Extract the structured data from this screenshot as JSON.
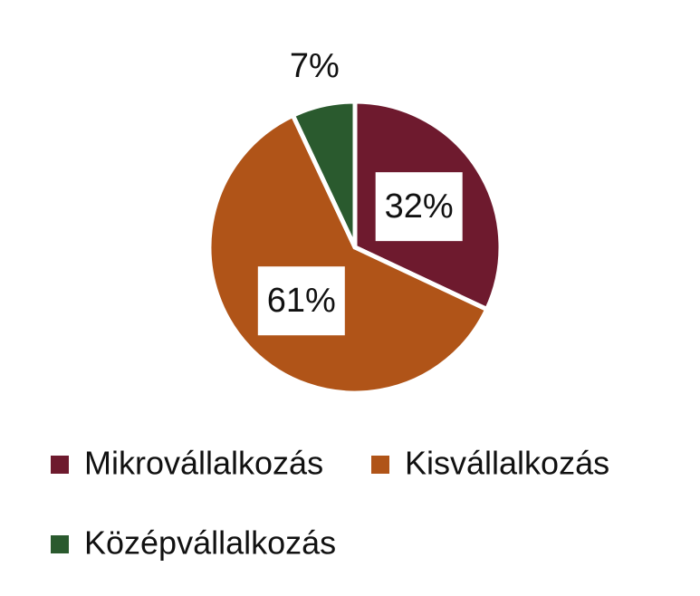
{
  "chart_data": {
    "type": "pie",
    "categories": [
      "Mikrovállalkozás",
      "Kisvállalkozás",
      "Középvállalkozás"
    ],
    "values": [
      32,
      61,
      7
    ],
    "value_labels": [
      "32%",
      "61%",
      "7%"
    ],
    "colors": [
      "#6e1a2e",
      "#b05418",
      "#2a5a2e"
    ],
    "legend": "bottom"
  }
}
